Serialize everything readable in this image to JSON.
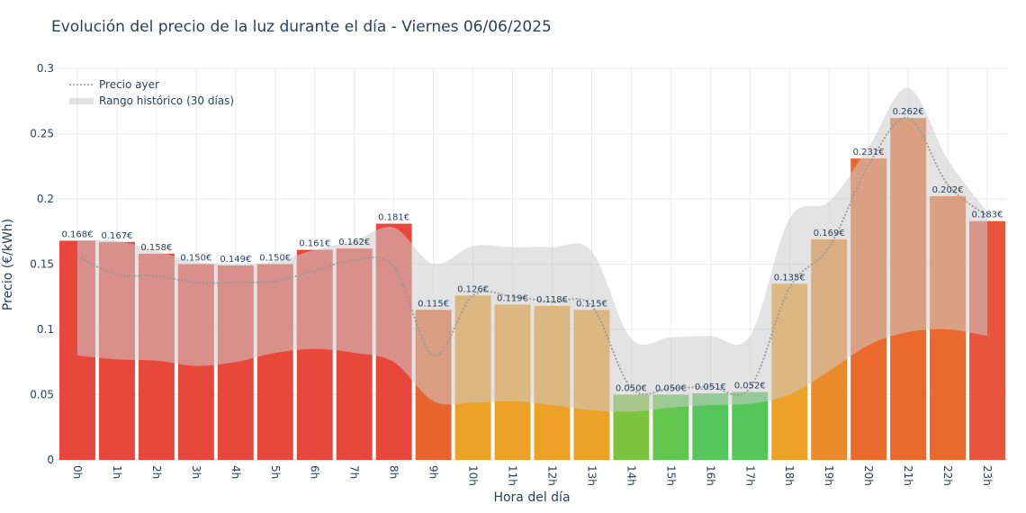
{
  "chart_data": {
    "type": "bar",
    "title": "Evolución del precio de la luz durante el día - Viernes 06/06/2025",
    "xlabel": "Hora del día",
    "ylabel": "Precio (€/kWh)",
    "ylim": [
      0,
      0.3
    ],
    "yticks": [
      "0",
      "0.05",
      "0.1",
      "0.15",
      "0.2",
      "0.25",
      "0.3"
    ],
    "grid": true,
    "legend_position": "top-left",
    "categories": [
      "0h",
      "1h",
      "2h",
      "3h",
      "4h",
      "5h",
      "6h",
      "7h",
      "8h",
      "9h",
      "10h",
      "11h",
      "12h",
      "13h",
      "14h",
      "15h",
      "16h",
      "17h",
      "18h",
      "19h",
      "20h",
      "21h",
      "22h",
      "23h"
    ],
    "series": [
      {
        "type": "bar",
        "values": [
          0.168,
          0.167,
          0.158,
          0.15,
          0.149,
          0.15,
          0.161,
          0.162,
          0.181,
          0.115,
          0.126,
          0.119,
          0.118,
          0.115,
          0.05,
          0.05,
          0.051,
          0.052,
          0.135,
          0.169,
          0.231,
          0.262,
          0.202,
          0.183
        ],
        "labels": [
          "0.168€",
          "0.167€",
          "0.158€",
          "0.150€",
          "0.149€",
          "0.150€",
          "0.161€",
          "0.162€",
          "0.181€",
          "0.115€",
          "0.126€",
          "0.119€",
          "0.118€",
          "0.115€",
          "0.050€",
          "0.050€",
          "0.051€",
          "0.052€",
          "0.135€",
          "0.169€",
          "0.231€",
          "0.262€",
          "0.202€",
          "0.183€"
        ],
        "colors": [
          "#e8483b",
          "#e8483b",
          "#e8483b",
          "#e8483b",
          "#e8483b",
          "#e8483b",
          "#e8483b",
          "#e8483b",
          "#e8483b",
          "#e8642e",
          "#eda126",
          "#eda126",
          "#eda126",
          "#eda126",
          "#7cc43f",
          "#62c74f",
          "#55c65a",
          "#55c65a",
          "#eda126",
          "#eb8a2a",
          "#ea6a2d",
          "#ea6a2d",
          "#ea6a2d",
          "#e8553a"
        ]
      },
      {
        "name": "Precio ayer",
        "type": "line",
        "style": "dotted",
        "color": "#999999",
        "values": [
          0.156,
          0.142,
          0.141,
          0.136,
          0.136,
          0.137,
          0.145,
          0.153,
          0.148,
          0.08,
          0.126,
          0.125,
          0.121,
          0.118,
          0.055,
          0.055,
          0.056,
          0.055,
          0.132,
          0.163,
          0.226,
          0.262,
          0.211,
          0.187
        ]
      },
      {
        "name": "Rango histórico (30 días)",
        "type": "area",
        "color": "#cccccc",
        "lower": [
          0.08,
          0.077,
          0.076,
          0.072,
          0.075,
          0.082,
          0.085,
          0.082,
          0.075,
          0.045,
          0.044,
          0.045,
          0.042,
          0.038,
          0.037,
          0.04,
          0.042,
          0.043,
          0.05,
          0.068,
          0.088,
          0.098,
          0.1,
          0.095
        ],
        "upper": [
          0.168,
          0.168,
          0.16,
          0.152,
          0.15,
          0.152,
          0.161,
          0.168,
          0.178,
          0.15,
          0.164,
          0.163,
          0.163,
          0.16,
          0.093,
          0.094,
          0.095,
          0.095,
          0.185,
          0.198,
          0.24,
          0.285,
          0.23,
          0.19
        ]
      }
    ]
  },
  "legend": {
    "yesterday_label": "Precio ayer",
    "range_label": "Rango histórico (30 días)"
  }
}
